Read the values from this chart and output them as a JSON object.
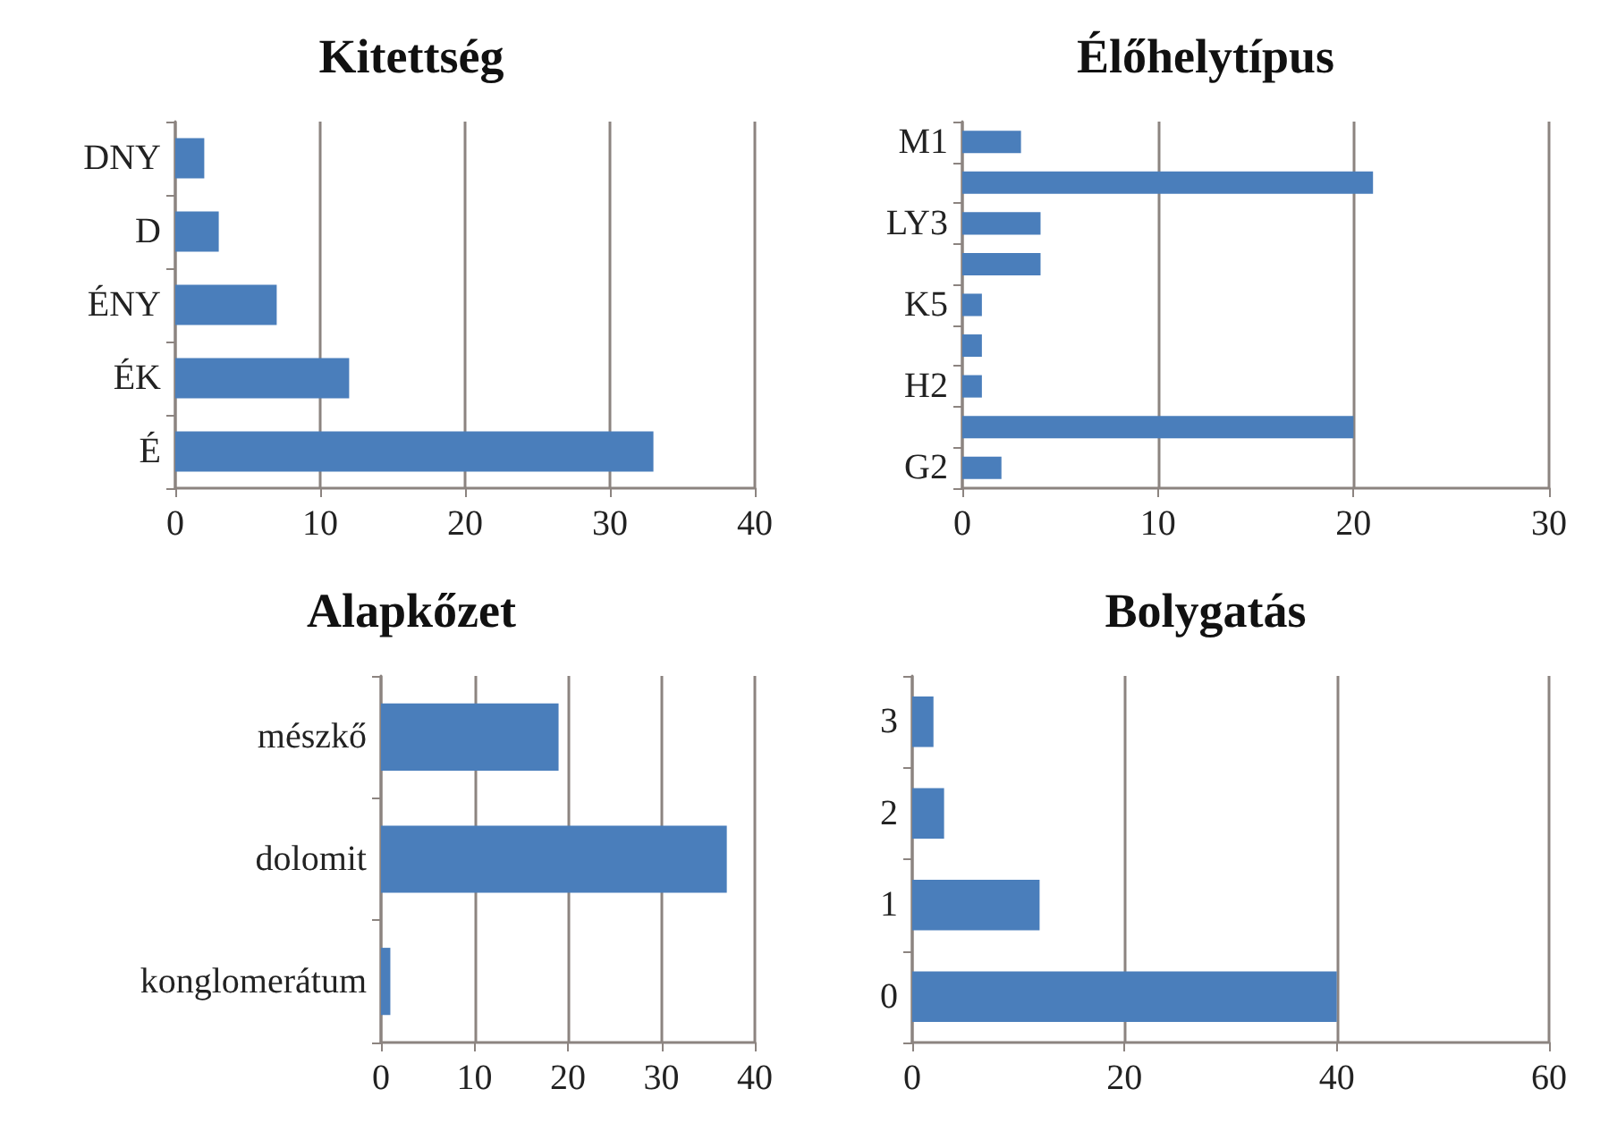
{
  "chart_data": [
    {
      "type": "bar",
      "orientation": "horizontal",
      "title": "Kitettség",
      "categories": [
        "DNY",
        "D",
        "ÉNY",
        "ÉK",
        "É"
      ],
      "values": [
        2,
        3,
        7,
        12,
        33
      ],
      "color": "#4a7ebb",
      "xlim": [
        0,
        40
      ],
      "xticks": [
        0,
        10,
        20,
        30,
        40
      ],
      "grid": "x"
    },
    {
      "type": "bar",
      "orientation": "horizontal",
      "title": "Élőhelytípus",
      "categories": [
        "M1",
        null,
        "LY3",
        null,
        "K5",
        null,
        "H2",
        null,
        "G2"
      ],
      "values": [
        3,
        21,
        4,
        4,
        1,
        1,
        1,
        20,
        2
      ],
      "color": "#4a7ebb",
      "xlim": [
        0,
        30
      ],
      "xticks": [
        0,
        10,
        20,
        30
      ],
      "grid": "x"
    },
    {
      "type": "bar",
      "orientation": "horizontal",
      "title": "Alapkőzet",
      "categories": [
        "mészkő",
        "dolomit",
        "konglomerátum"
      ],
      "values": [
        19,
        37,
        1
      ],
      "color": "#4a7ebb",
      "xlim": [
        0,
        40
      ],
      "xticks": [
        0,
        10,
        20,
        30,
        40
      ],
      "grid": "x"
    },
    {
      "type": "bar",
      "orientation": "horizontal",
      "title": "Bolygatás",
      "categories": [
        "3",
        "2",
        "1",
        "0"
      ],
      "values": [
        2,
        3,
        12,
        40
      ],
      "color": "#4a7ebb",
      "xlim": [
        0,
        60
      ],
      "xticks": [
        0,
        20,
        40,
        60
      ],
      "grid": "x"
    }
  ]
}
